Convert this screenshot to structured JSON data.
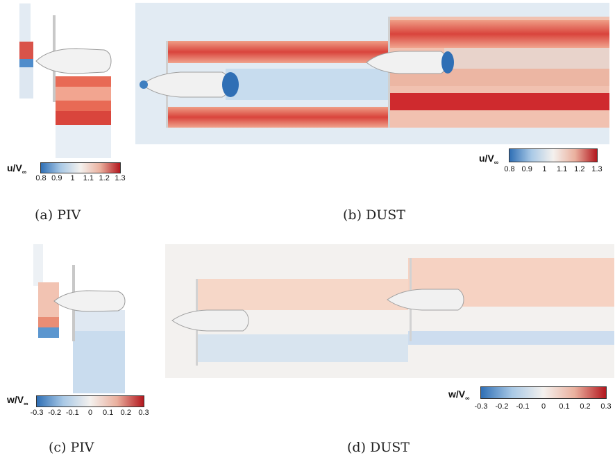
{
  "figure": {
    "panels": [
      {
        "id": "a",
        "caption": "(a) PIV"
      },
      {
        "id": "b",
        "caption": "(b) DUST"
      },
      {
        "id": "c",
        "caption": "(c) PIV"
      },
      {
        "id": "d",
        "caption": "(d) DUST"
      }
    ],
    "colorbars": [
      {
        "id": "u-piv",
        "symbol": "u/V",
        "subscript": "∞",
        "ticks": [
          "0.8",
          "0.9",
          "1",
          "1.1",
          "1.2",
          "1.3"
        ]
      },
      {
        "id": "u-dust",
        "symbol": "u/V",
        "subscript": "∞",
        "ticks": [
          "0.8",
          "0.9",
          "1",
          "1.1",
          "1.2",
          "1.3"
        ]
      },
      {
        "id": "w-piv",
        "symbol": "w/V",
        "subscript": "∞",
        "ticks": [
          "-0.3",
          "-0.2",
          "-0.1",
          "0",
          "0.1",
          "0.2",
          "0.3"
        ]
      },
      {
        "id": "w-dust",
        "symbol": "w/V",
        "subscript": "∞",
        "ticks": [
          "-0.3",
          "-0.2",
          "-0.1",
          "0",
          "0.1",
          "0.2",
          "0.3"
        ]
      }
    ],
    "colors": {
      "low": "#2f6fb5",
      "mid": "#f4f1ee",
      "high": "#b3171e"
    }
  }
}
